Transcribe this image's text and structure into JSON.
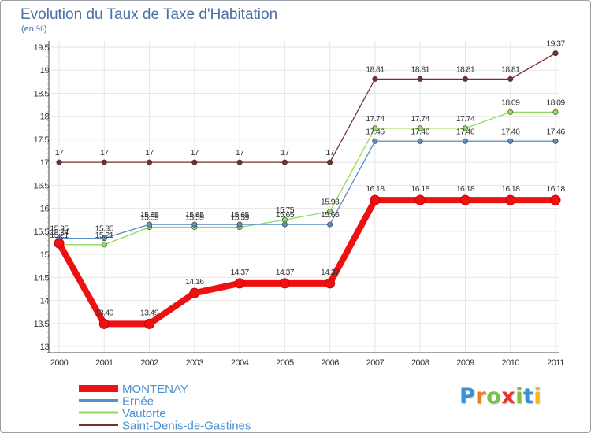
{
  "chart_data": {
    "type": "line",
    "title": "Evolution du Taux de Taxe d'Habitation",
    "subtitle": "(en %)",
    "xlabel": "",
    "ylabel": "(en %)",
    "x": [
      2000,
      2001,
      2002,
      2003,
      2004,
      2005,
      2006,
      2007,
      2008,
      2009,
      2010,
      2011
    ],
    "x_tick_labels": [
      "2000",
      "2001",
      "2002",
      "2003",
      "2004",
      "2005",
      "2006",
      "2007",
      "2008",
      "2009",
      "2010",
      "2011"
    ],
    "ylim": [
      13,
      19.5
    ],
    "y_ticks": [
      13,
      13.5,
      14,
      14.5,
      15,
      15.5,
      16,
      16.5,
      17,
      17.5,
      18,
      18.5,
      19,
      19.5
    ],
    "y_tick_labels": [
      "13",
      "13.5",
      "14",
      "14.5",
      "15",
      "15.5",
      "16",
      "16.5",
      "17",
      "17.5",
      "18",
      "18.5",
      "19",
      "19.5"
    ],
    "grid": true,
    "legend_position": "bottom-left",
    "series": [
      {
        "name": "Saint-Denis-de-Gastines",
        "key": "saint-denis-de-gastines",
        "color": "#7a2e2e",
        "emphasis": false,
        "values": [
          17,
          17,
          17,
          17,
          17,
          17,
          17,
          18.81,
          18.81,
          18.81,
          18.81,
          19.37
        ],
        "labels": [
          "17",
          "17",
          "17",
          "17",
          "17",
          "17",
          "17",
          "18.81",
          "18.81",
          "18.81",
          "18.81",
          "19.37"
        ]
      },
      {
        "name": "Vautorte",
        "key": "vautorte",
        "color": "#8fdc5a",
        "emphasis": false,
        "values": [
          15.21,
          15.21,
          15.59,
          15.59,
          15.59,
          15.75,
          15.93,
          17.74,
          17.74,
          17.74,
          18.09,
          18.09
        ],
        "labels": [
          "15.21",
          "15.21",
          "15.59",
          "15.59",
          "15.59",
          "15.75",
          "15.93",
          "17.74",
          "17.74",
          "17.74",
          "18.09",
          "18.09"
        ]
      },
      {
        "name": "Ernée",
        "key": "ernee",
        "color": "#5a8fc4",
        "emphasis": false,
        "values": [
          15.35,
          15.35,
          15.65,
          15.65,
          15.65,
          15.65,
          15.65,
          17.46,
          17.46,
          17.46,
          17.46,
          17.46
        ],
        "labels": [
          "15.35",
          "15.35",
          "15.65",
          "15.65",
          "15.65",
          "15.65",
          "15.65",
          "17.46",
          "17.46",
          "17.46",
          "17.46",
          "17.46"
        ]
      },
      {
        "name": "MONTENAY",
        "key": "montenay",
        "color": "#ee1111",
        "emphasis": true,
        "values": [
          15.24,
          13.49,
          13.49,
          14.16,
          14.37,
          14.37,
          14.37,
          16.18,
          16.18,
          16.18,
          16.18,
          16.18
        ],
        "labels": [
          "15.24",
          "13.49",
          "13.49",
          "14.16",
          "14.37",
          "14.37",
          "14.37",
          "16.18",
          "16.18",
          "16.18",
          "16.18",
          "16.18"
        ]
      }
    ],
    "legend": [
      {
        "name": "MONTENAY",
        "color": "#ee1111",
        "emphasis": true
      },
      {
        "name": "Ernée",
        "color": "#5a8fc4",
        "emphasis": false
      },
      {
        "name": "Vautorte",
        "color": "#8fdc5a",
        "emphasis": false
      },
      {
        "name": "Saint-Denis-de-Gastines",
        "color": "#7a2e2e",
        "emphasis": false
      }
    ]
  },
  "logo": {
    "letters": [
      "P",
      "r",
      "o",
      "x",
      "i",
      "t",
      "i"
    ],
    "colors": [
      "#3a8fd8",
      "#f07a1a",
      "#7cc242",
      "#e8322b",
      "#7cc242",
      "#3a8fd8",
      "#f2b81c"
    ]
  }
}
